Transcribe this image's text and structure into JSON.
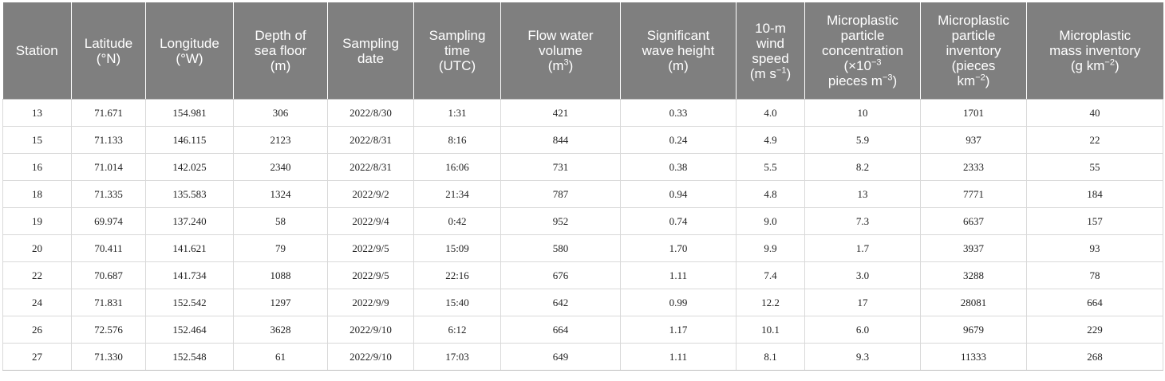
{
  "table": {
    "headers": [
      {
        "lines": [
          "Station"
        ]
      },
      {
        "lines": [
          "Latitude",
          "(°N)"
        ]
      },
      {
        "lines": [
          "Longitude",
          "(°W)"
        ]
      },
      {
        "lines": [
          "Depth of",
          "sea floor",
          "(m)"
        ]
      },
      {
        "lines": [
          "Sampling",
          "date"
        ]
      },
      {
        "lines": [
          "Sampling",
          "time",
          "(UTC)"
        ]
      },
      {
        "lines": [
          "Flow water",
          "volume"
        ],
        "unit_base": "(m",
        "unit_sup": "3",
        "unit_tail": ")"
      },
      {
        "lines": [
          "Significant",
          "wave height",
          "(m)"
        ]
      },
      {
        "lines": [
          "10-m",
          "wind",
          "speed"
        ],
        "unit_base": "(m s",
        "unit_sup": "−1",
        "unit_tail": ")"
      },
      {
        "lines": [
          "Microplastic",
          "particle",
          "concentration"
        ],
        "unit_base": "(×10",
        "unit_sup": "−3",
        "unit_tail": "",
        "extra_base": "pieces m",
        "extra_sup": "−3",
        "extra_tail": ")"
      },
      {
        "lines": [
          "Microplastic",
          "particle",
          "inventory",
          "(pieces"
        ],
        "unit_base": "km",
        "unit_sup": "−2",
        "unit_tail": ")"
      },
      {
        "lines": [
          "Microplastic",
          "mass inventory"
        ],
        "unit_base": "(g km",
        "unit_sup": "−2",
        "unit_tail": ")"
      }
    ],
    "rows": [
      [
        "13",
        "71.671",
        "154.981",
        "306",
        "2022/8/30",
        "1:31",
        "421",
        "0.33",
        "4.0",
        "10",
        "1701",
        "40"
      ],
      [
        "15",
        "71.133",
        "146.115",
        "2123",
        "2022/8/31",
        "8:16",
        "844",
        "0.24",
        "4.9",
        "5.9",
        "937",
        "22"
      ],
      [
        "16",
        "71.014",
        "142.025",
        "2340",
        "2022/8/31",
        "16:06",
        "731",
        "0.38",
        "5.5",
        "8.2",
        "2333",
        "55"
      ],
      [
        "18",
        "71.335",
        "135.583",
        "1324",
        "2022/9/2",
        "21:34",
        "787",
        "0.94",
        "4.8",
        "13",
        "7771",
        "184"
      ],
      [
        "19",
        "69.974",
        "137.240",
        "58",
        "2022/9/4",
        "0:42",
        "952",
        "0.74",
        "9.0",
        "7.3",
        "6637",
        "157"
      ],
      [
        "20",
        "70.411",
        "141.621",
        "79",
        "2022/9/5",
        "15:09",
        "580",
        "1.70",
        "9.9",
        "1.7",
        "3937",
        "93"
      ],
      [
        "22",
        "70.687",
        "141.734",
        "1088",
        "2022/9/5",
        "22:16",
        "676",
        "1.11",
        "7.4",
        "3.0",
        "3288",
        "78"
      ],
      [
        "24",
        "71.831",
        "152.542",
        "1297",
        "2022/9/9",
        "15:40",
        "642",
        "0.99",
        "12.2",
        "17",
        "28081",
        "664"
      ],
      [
        "26",
        "72.576",
        "152.464",
        "3628",
        "2022/9/10",
        "6:12",
        "664",
        "1.17",
        "10.1",
        "6.0",
        "9679",
        "229"
      ],
      [
        "27",
        "71.330",
        "152.548",
        "61",
        "2022/9/10",
        "17:03",
        "649",
        "1.11",
        "8.1",
        "9.3",
        "11333",
        "268"
      ]
    ]
  }
}
